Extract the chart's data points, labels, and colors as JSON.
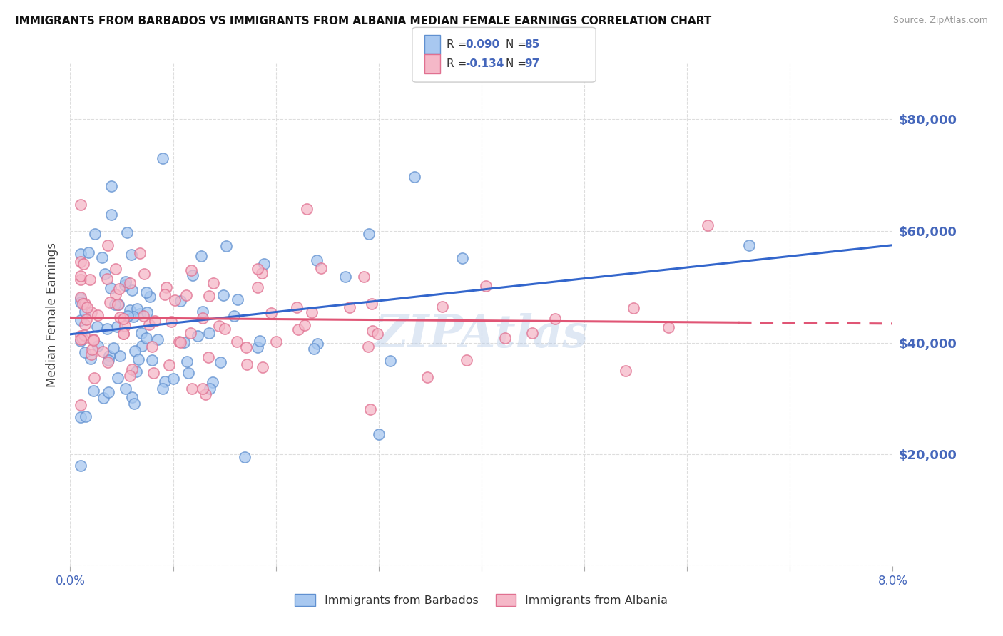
{
  "title": "IMMIGRANTS FROM BARBADOS VS IMMIGRANTS FROM ALBANIA MEDIAN FEMALE EARNINGS CORRELATION CHART",
  "source": "Source: ZipAtlas.com",
  "ylabel": "Median Female Earnings",
  "xlim": [
    0.0,
    0.08
  ],
  "ylim": [
    0,
    90000
  ],
  "yticks": [
    0,
    20000,
    40000,
    60000,
    80000
  ],
  "ytick_labels": [
    "",
    "$20,000",
    "$40,000",
    "$60,000",
    "$80,000"
  ],
  "xticks": [
    0.0,
    0.01,
    0.02,
    0.03,
    0.04,
    0.05,
    0.06,
    0.07,
    0.08
  ],
  "xtick_labels": [
    "0.0%",
    "",
    "",
    "",
    "",
    "",
    "",
    "",
    "8.0%"
  ],
  "barbados_R": 0.09,
  "barbados_N": 85,
  "albania_R": -0.134,
  "albania_N": 97,
  "barbados_color": "#a8c8f0",
  "albania_color": "#f5b8c8",
  "barbados_edge": "#6090d0",
  "albania_edge": "#e07090",
  "trend_barbados_color": "#3366cc",
  "trend_albania_color": "#e05575",
  "watermark": "ZIPAtlas",
  "background_color": "#ffffff",
  "grid_color": "#dddddd",
  "title_color": "#111111",
  "axis_label_color": "#4466bb",
  "right_tick_color": "#4466bb"
}
